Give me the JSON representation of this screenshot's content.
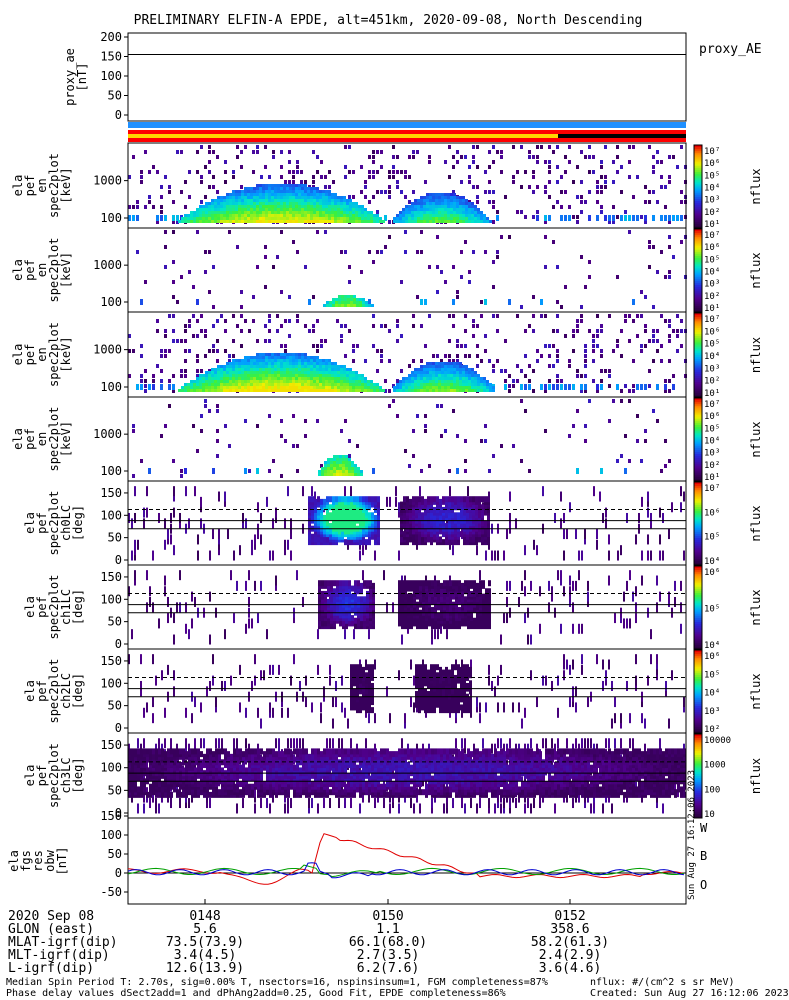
{
  "title": "PRELIMINARY ELFIN-A EPDE, alt=451km, 2020-09-08, North Descending",
  "colors": {
    "blue_bar": "#1e90ff",
    "red_bar": "#ff0000",
    "yellow_bar": "#ffd700",
    "black_bar": "#000000",
    "trace_red": "#e00000",
    "trace_green": "#00a000",
    "trace_blue": "#0000d0"
  },
  "colorbar": {
    "ticks_1e7": [
      "10⁷",
      "10⁶",
      "10⁵",
      "10⁴",
      "10³",
      "10²",
      "10¹"
    ],
    "label": "nflux",
    "ticks_lc0": [
      "10⁷",
      "10⁶",
      "10⁵",
      "10⁴"
    ],
    "ticks_lc1": [
      "10⁶",
      "10⁵",
      "10⁴"
    ],
    "ticks_lc2": [
      "10⁶",
      "10⁵",
      "10⁴",
      "10³",
      "10²"
    ],
    "ticks_lc3": [
      "10000",
      "1000",
      "100",
      "10"
    ]
  },
  "panels": {
    "proxy_ae": {
      "ylabel": [
        "proxy_ae",
        "[nT]"
      ],
      "yticks": [
        "200",
        "150",
        "100",
        "50",
        "0"
      ],
      "right_label": "proxy_AE"
    },
    "en1": {
      "ylabel": [
        "ela",
        "pef",
        "en",
        "spec2plot",
        "[keV]"
      ],
      "yticks": [
        "1000",
        "100"
      ]
    },
    "en2": {
      "ylabel": [
        "ela",
        "pef",
        "en",
        "spec2plot",
        "[keV]"
      ],
      "yticks": [
        "1000",
        "100"
      ]
    },
    "en3": {
      "ylabel": [
        "ela",
        "pef",
        "en",
        "spec2plot",
        "[keV]"
      ],
      "yticks": [
        "1000",
        "100"
      ]
    },
    "en4": {
      "ylabel": [
        "ela",
        "pef",
        "en",
        "spec2plot",
        "[keV]"
      ],
      "yticks": [
        "1000",
        "100"
      ]
    },
    "lc0": {
      "ylabel": [
        "ela",
        "pef",
        "spec2plot",
        "ch0LC",
        "[deg]"
      ],
      "yticks": [
        "150",
        "100",
        "50",
        "0"
      ]
    },
    "lc1": {
      "ylabel": [
        "ela",
        "pef",
        "spec2plot",
        "ch1LC",
        "[deg]"
      ],
      "yticks": [
        "150",
        "100",
        "50",
        "0"
      ]
    },
    "lc2": {
      "ylabel": [
        "ela",
        "pef",
        "spec2plot",
        "ch2LC",
        "[deg]"
      ],
      "yticks": [
        "150",
        "100",
        "50",
        "0"
      ]
    },
    "lc3": {
      "ylabel": [
        "ela",
        "pef",
        "spec2plot",
        "ch3LC",
        "[deg]"
      ],
      "yticks": [
        "150",
        "100",
        "50",
        "0"
      ]
    },
    "fgs": {
      "ylabel": [
        "ela",
        "fgs",
        "res",
        "obw",
        "[nT]"
      ],
      "yticks": [
        "150",
        "100",
        "50",
        "0",
        "-50"
      ],
      "legend": [
        "W",
        "B",
        "O"
      ]
    }
  },
  "chart_data": {
    "type": "line",
    "x_axis_times": [
      "0148",
      "0150",
      "0152"
    ],
    "rows": [
      {
        "label": "2020 Sep 08",
        "values": [
          "0148",
          "0150",
          "0152"
        ]
      },
      {
        "label": "GLON (east)",
        "values": [
          "5.6",
          "1.1",
          "358.6"
        ]
      },
      {
        "label": "MLAT-igrf(dip)",
        "values": [
          "73.5(73.9)",
          "66.1(68.0)",
          "58.2(61.3)"
        ]
      },
      {
        "label": "MLT-igrf(dip)",
        "values": [
          "3.4(4.5)",
          "2.7(3.5)",
          "2.4(2.9)"
        ]
      },
      {
        "label": "L-igrf(dip)",
        "values": [
          "12.6(13.9)",
          "6.2(7.6)",
          "3.6(4.6)"
        ]
      }
    ],
    "proxy_ae_level": 155,
    "fgs_red_peak": 105
  },
  "footer": {
    "line1": "Median Spin Period T: 2.70s, sig=0.00% T, nsectors=16, nspinsinsum=1, FGM completeness=87%",
    "line2": "Phase delay values dSect2add=1 and dPhAng2add=0.25, Good Fit, EPDE completeness=86%",
    "right1": "nflux: #/(cm^2 s sr MeV)",
    "right2": "Created: Sun Aug 27 16:12:06 2023",
    "side_stamp": "Sun Aug 27 16:12:06 2023"
  }
}
